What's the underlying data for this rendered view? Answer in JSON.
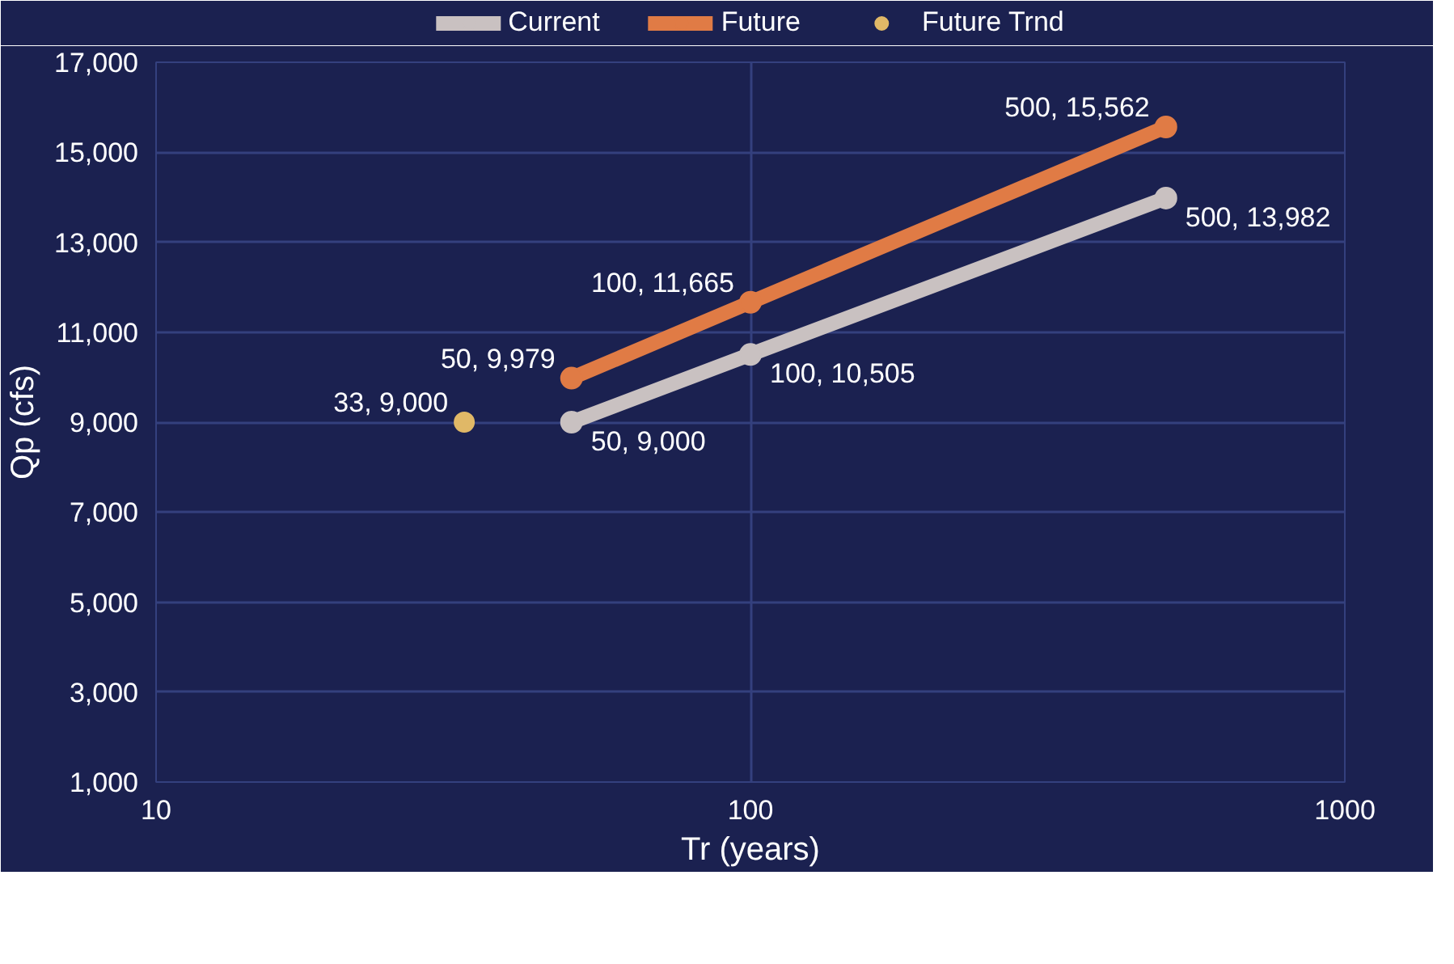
{
  "chart_data": {
    "type": "line",
    "xlabel": "Tr (years)",
    "ylabel": "Qp (cfs)",
    "log": "x",
    "xlim": [
      10,
      1000
    ],
    "xticks": [
      10,
      100,
      1000
    ],
    "ylim": [
      1000,
      17000
    ],
    "yticks": [
      {
        "value": 1000,
        "label": "1,000"
      },
      {
        "value": 3000,
        "label": "3,000"
      },
      {
        "value": 5000,
        "label": "5,000"
      },
      {
        "value": 7000,
        "label": "7,000"
      },
      {
        "value": 9000,
        "label": "9,000"
      },
      {
        "value": 11000,
        "label": "11,000"
      },
      {
        "value": 13000,
        "label": "13,000"
      },
      {
        "value": 15000,
        "label": "15,000"
      },
      {
        "value": 17000,
        "label": "17,000"
      }
    ],
    "grid": true,
    "legend": "top",
    "marker": "circle",
    "line_style": "solid",
    "series": [
      {
        "name": "Current",
        "color": "#c9c1c1",
        "x": [
          50,
          100,
          500
        ],
        "values": [
          9000,
          10505,
          13982
        ],
        "value_labels": [
          "50, 9,000",
          "100, 10,505",
          "500, 13,982"
        ]
      },
      {
        "name": "Future",
        "color": "#e07b45",
        "x": [
          50,
          100,
          500
        ],
        "values": [
          9979,
          11665,
          15562
        ],
        "value_labels": [
          "50, 9,979",
          "100, 11,665",
          "500, 15,562"
        ]
      },
      {
        "name": "Future Trnd",
        "type": "scatter",
        "color": "#e0b867",
        "x": [
          33
        ],
        "values": [
          9000
        ],
        "value_labels": [
          "33, 9,000"
        ]
      }
    ]
  }
}
